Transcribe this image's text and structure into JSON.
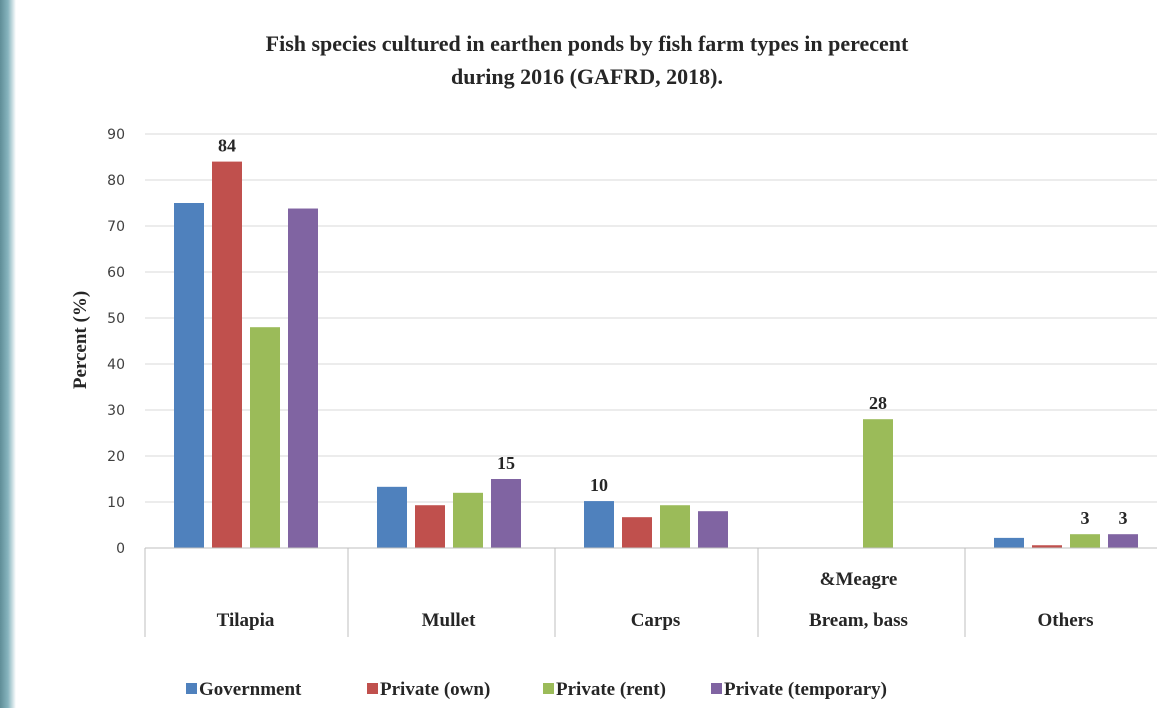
{
  "chart_data": {
    "type": "bar",
    "title": "Fish species cultured  in earthen ponds by fish farm types in perecent",
    "subtitle": "during 2016  (GAFRD, 2018).",
    "ylabel": "Percent (%)",
    "xlabel": "",
    "ylim": [
      0,
      90
    ],
    "yticks": [
      "0",
      "10",
      "20",
      "30",
      "40",
      "50",
      "60",
      "70",
      "80",
      "90"
    ],
    "grid": true,
    "legend_position": "bottom",
    "categories": [
      [
        "Tilapia"
      ],
      [
        "Mullet"
      ],
      [
        "Carps"
      ],
      [
        "&Meagre",
        "Bream, bass"
      ],
      [
        "Others"
      ]
    ],
    "series": [
      {
        "name": "Government",
        "color": "#4f81bd",
        "values": [
          75,
          13.3,
          10.2,
          0,
          2.2
        ]
      },
      {
        "name": "Private (own)",
        "color": "#c0504d",
        "values": [
          84,
          9.3,
          6.7,
          0,
          0.6
        ]
      },
      {
        "name": "Private (rent)",
        "color": "#9bbb59",
        "values": [
          48,
          12,
          9.3,
          28,
          3
        ]
      },
      {
        "name": "Private (temporary)",
        "color": "#8064a2",
        "values": [
          73.8,
          15,
          8,
          0,
          3
        ]
      }
    ],
    "data_labels": [
      {
        "series": 1,
        "category": 0,
        "text": "84"
      },
      {
        "series": 3,
        "category": 1,
        "text": "15"
      },
      {
        "series": 0,
        "category": 2,
        "text": "10"
      },
      {
        "series": 2,
        "category": 3,
        "text": "28"
      },
      {
        "series": 2,
        "category": 4,
        "text": "3"
      },
      {
        "series": 3,
        "category": 4,
        "text": "3"
      }
    ]
  }
}
